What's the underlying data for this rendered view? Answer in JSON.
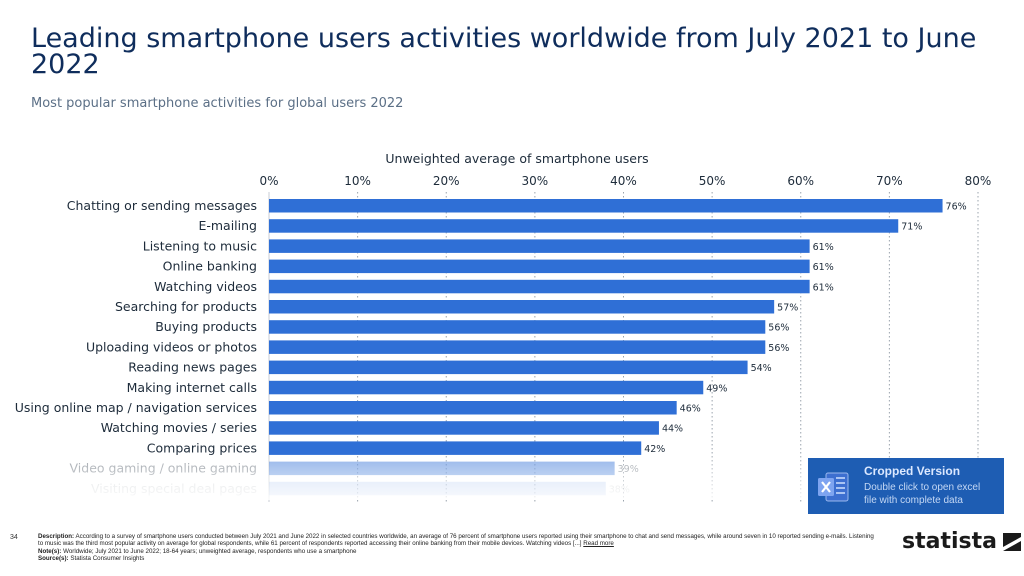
{
  "chart_data": {
    "type": "bar",
    "orientation": "horizontal",
    "title": "Leading smartphone users activities worldwide from July 2021 to June 2022",
    "subtitle": "Most popular smartphone activities for global users 2022",
    "xlabel": "Unweighted average of smartphone users",
    "xlim": [
      0,
      80
    ],
    "x_ticks": [
      "0%",
      "10%",
      "20%",
      "30%",
      "40%",
      "50%",
      "60%",
      "70%",
      "80%"
    ],
    "grid": true,
    "categories": [
      "Chatting or sending messages",
      "E-mailing",
      "Listening to music",
      "Online banking",
      "Watching videos",
      "Searching for products",
      "Buying products",
      "Uploading videos or photos",
      "Reading news pages",
      "Making internet calls",
      "Using online map / navigation services",
      "Watching movies / series",
      "Comparing prices",
      "Video gaming / online gaming",
      "Visiting special deal pages"
    ],
    "values": [
      76,
      71,
      61,
      61,
      61,
      57,
      56,
      56,
      54,
      49,
      46,
      44,
      42,
      39,
      38
    ],
    "value_labels": [
      "76%",
      "71%",
      "61%",
      "61%",
      "61%",
      "57%",
      "56%",
      "56%",
      "54%",
      "49%",
      "46%",
      "44%",
      "42%",
      "39%",
      "38%"
    ],
    "bar_color": "#2f6fd6"
  },
  "cropped_box": {
    "title": "Cropped Version",
    "desc_line1": "Double click to open excel",
    "desc_line2": "file with complete data",
    "icon": "excel-icon"
  },
  "footer": {
    "page_number": "34",
    "description_label": "Description:",
    "description_text": "According to a survey of smartphone users conducted between July 2021 and June 2022 in selected countries worldwide, an average of 76 percent of smartphone users reported using their smartphone to chat and send messages, while around seven in 10 reported sending e-mails. Listening to music was the third most popular activity on average for global respondents, while 61 percent of respondents reported accessing their online banking from their mobile devices. Watching videos [...]",
    "read_more": "Read more",
    "notes_label": "Note(s):",
    "notes_text": "Worldwide; July 2021 to June 2022; 18-64 years; unweighted average, respondents who use a smartphone",
    "source_label": "Source(s):",
    "source_text": "Statista Consumer Insights"
  },
  "brand": {
    "name": "statista",
    "icon": "statista-logo-icon"
  }
}
